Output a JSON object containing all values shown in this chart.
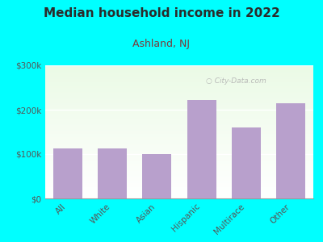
{
  "title": "Median household income in 2022",
  "subtitle": "Ashland, NJ",
  "categories": [
    "All",
    "White",
    "Asian",
    "Hispanic",
    "Multirace",
    "Other"
  ],
  "values": [
    112000,
    112000,
    100000,
    222000,
    160000,
    215000
  ],
  "bar_color": "#b8a0cc",
  "ylim": [
    0,
    300000
  ],
  "yticks": [
    0,
    100000,
    200000,
    300000
  ],
  "ytick_labels": [
    "$0",
    "$100k",
    "$200k",
    "$300k"
  ],
  "background_color": "#00ffff",
  "title_color": "#2b2b2b",
  "subtitle_color": "#7a3b3b",
  "tick_color": "#555555",
  "watermark": "  City-Data.com",
  "title_fontsize": 11,
  "subtitle_fontsize": 9,
  "tick_fontsize": 7.5,
  "xlabel_fontsize": 7.5
}
